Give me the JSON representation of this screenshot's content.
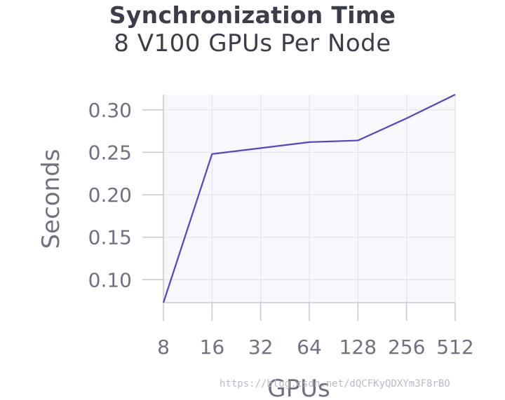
{
  "chart_data": {
    "type": "line",
    "title": "Synchronization Time",
    "subtitle": "8 V100 GPUs Per Node",
    "xlabel": "GPUs",
    "ylabel": "Seconds",
    "categories": [
      "8",
      "16",
      "32",
      "64",
      "128",
      "256",
      "512"
    ],
    "series": [
      {
        "values": [
          0.073,
          0.248,
          0.255,
          0.262,
          0.264,
          0.29,
          0.318
        ]
      }
    ],
    "yticks": [
      0.1,
      0.15,
      0.2,
      0.25,
      0.3
    ],
    "ytick_labels": [
      "0.10",
      "0.15",
      "0.20",
      "0.25",
      "0.30"
    ],
    "ylim": [
      0.073,
      0.318
    ],
    "grid": true,
    "line_color": "#5644c7",
    "plot_background": "#f6f8fc",
    "grid_color": "#e2e4ea"
  },
  "watermark": "https://blog.csdn.net/dQCFKyQDXYm3F8rBO"
}
